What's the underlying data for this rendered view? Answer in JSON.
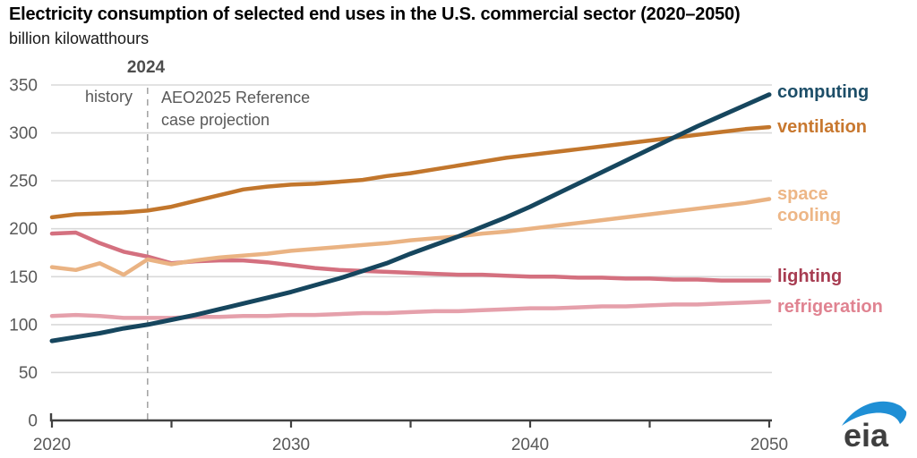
{
  "title": "Electricity consumption of selected end uses in the U.S. commercial sector (2020–2050)",
  "subtitle": "billion kilowatthours",
  "annotations": {
    "divider_year": "2024",
    "history_label": "history",
    "projection_line1": "AEO2025 Reference",
    "projection_line2": "case projection"
  },
  "logo": {
    "text": "eia"
  },
  "colors": {
    "grid": "#d9d9d9",
    "axis": "#404040",
    "divider": "#a6a6a6",
    "tick_label": "#595959",
    "logo_blue": "#1f8fd5",
    "logo_text": "#3f3f3f"
  },
  "chart_data": {
    "type": "line",
    "title": "Electricity consumption of selected end uses in the U.S. commercial sector (2020–2050)",
    "ylabel": "billion kilowatthours",
    "xlabel": "",
    "x_start": 2020,
    "x_end": 2050,
    "x_ticks": [
      2020,
      2025,
      2030,
      2035,
      2040,
      2045,
      2050
    ],
    "x_tick_labels": [
      "2020",
      "2030",
      "2040",
      "2050"
    ],
    "y_ticks": [
      0,
      50,
      100,
      150,
      200,
      250,
      300,
      350
    ],
    "ylim": [
      0,
      350
    ],
    "grid": "horizontal",
    "legend_position": "right-of-lines",
    "history_boundary": 2024,
    "years": [
      2020,
      2021,
      2022,
      2023,
      2024,
      2025,
      2026,
      2027,
      2028,
      2029,
      2030,
      2031,
      2032,
      2033,
      2034,
      2035,
      2036,
      2037,
      2038,
      2039,
      2040,
      2041,
      2042,
      2043,
      2044,
      2045,
      2046,
      2047,
      2048,
      2049,
      2050
    ],
    "series": [
      {
        "name": "refrigeration",
        "label_lines": [
          "refrigeration"
        ],
        "line_color": "#e5a0ab",
        "label_color": "#e08391",
        "values": [
          109,
          110,
          109,
          107,
          107,
          107,
          108,
          108,
          109,
          109,
          110,
          110,
          111,
          112,
          112,
          113,
          114,
          114,
          115,
          116,
          117,
          117,
          118,
          119,
          119,
          120,
          121,
          121,
          122,
          123,
          124
        ]
      },
      {
        "name": "lighting",
        "label_lines": [
          "lighting"
        ],
        "line_color": "#d4707f",
        "label_color": "#a73c51",
        "values": [
          195,
          196,
          185,
          176,
          171,
          164,
          166,
          167,
          167,
          165,
          162,
          159,
          157,
          156,
          155,
          154,
          153,
          152,
          152,
          151,
          150,
          150,
          149,
          149,
          148,
          148,
          147,
          147,
          146,
          146,
          146
        ]
      },
      {
        "name": "space cooling",
        "label_lines": [
          "space",
          "cooling"
        ],
        "line_color": "#eab383",
        "label_color": "#edb686",
        "values": [
          160,
          157,
          164,
          152,
          168,
          163,
          167,
          170,
          172,
          174,
          177,
          179,
          181,
          183,
          185,
          188,
          190,
          192,
          195,
          197,
          200,
          203,
          206,
          209,
          212,
          215,
          218,
          221,
          224,
          227,
          231
        ]
      },
      {
        "name": "ventilation",
        "label_lines": [
          "ventilation"
        ],
        "line_color": "#c2762c",
        "label_color": "#c8782f",
        "values": [
          212,
          215,
          216,
          217,
          219,
          223,
          229,
          235,
          241,
          244,
          246,
          247,
          249,
          251,
          255,
          258,
          262,
          266,
          270,
          274,
          277,
          280,
          283,
          286,
          289,
          292,
          295,
          298,
          301,
          304,
          306
        ]
      },
      {
        "name": "computing",
        "label_lines": [
          "computing"
        ],
        "line_color": "#16465e",
        "label_color": "#1d4e68",
        "values": [
          83,
          87,
          91,
          96,
          100,
          105,
          110,
          116,
          122,
          128,
          134,
          141,
          148,
          156,
          164,
          174,
          183,
          192,
          202,
          212,
          223,
          235,
          247,
          259,
          271,
          283,
          295,
          307,
          318,
          329,
          340
        ]
      }
    ]
  }
}
